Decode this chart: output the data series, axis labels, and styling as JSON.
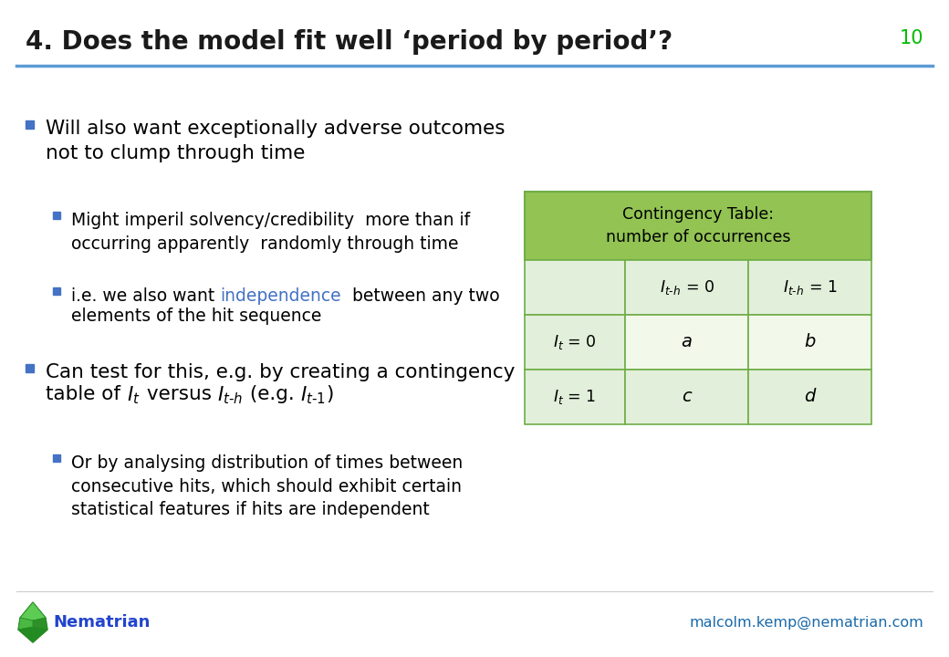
{
  "title": "4. Does the model fit well ‘period by period’?",
  "slide_number": "10",
  "title_color": "#1a1a1a",
  "title_fontsize": 20,
  "slide_number_color": "#00bb00",
  "background_color": "#ffffff",
  "header_line_color": "#5b9bd5",
  "bullet_sq_color": "#4472c4",
  "sub_bullet_sq_color": "#4472c4",
  "independence_color": "#4472c4",
  "nematrian_color": "#2244cc",
  "email_color": "#1a6aaa",
  "table_header_bg": "#92c353",
  "table_cell_bg_light": "#e2efda",
  "table_cell_bg_white": "#f2f9eb",
  "table_border_color": "#70ad47",
  "footer_left": "Nematrian",
  "footer_right": "malcolm.kemp@nematrian.com"
}
